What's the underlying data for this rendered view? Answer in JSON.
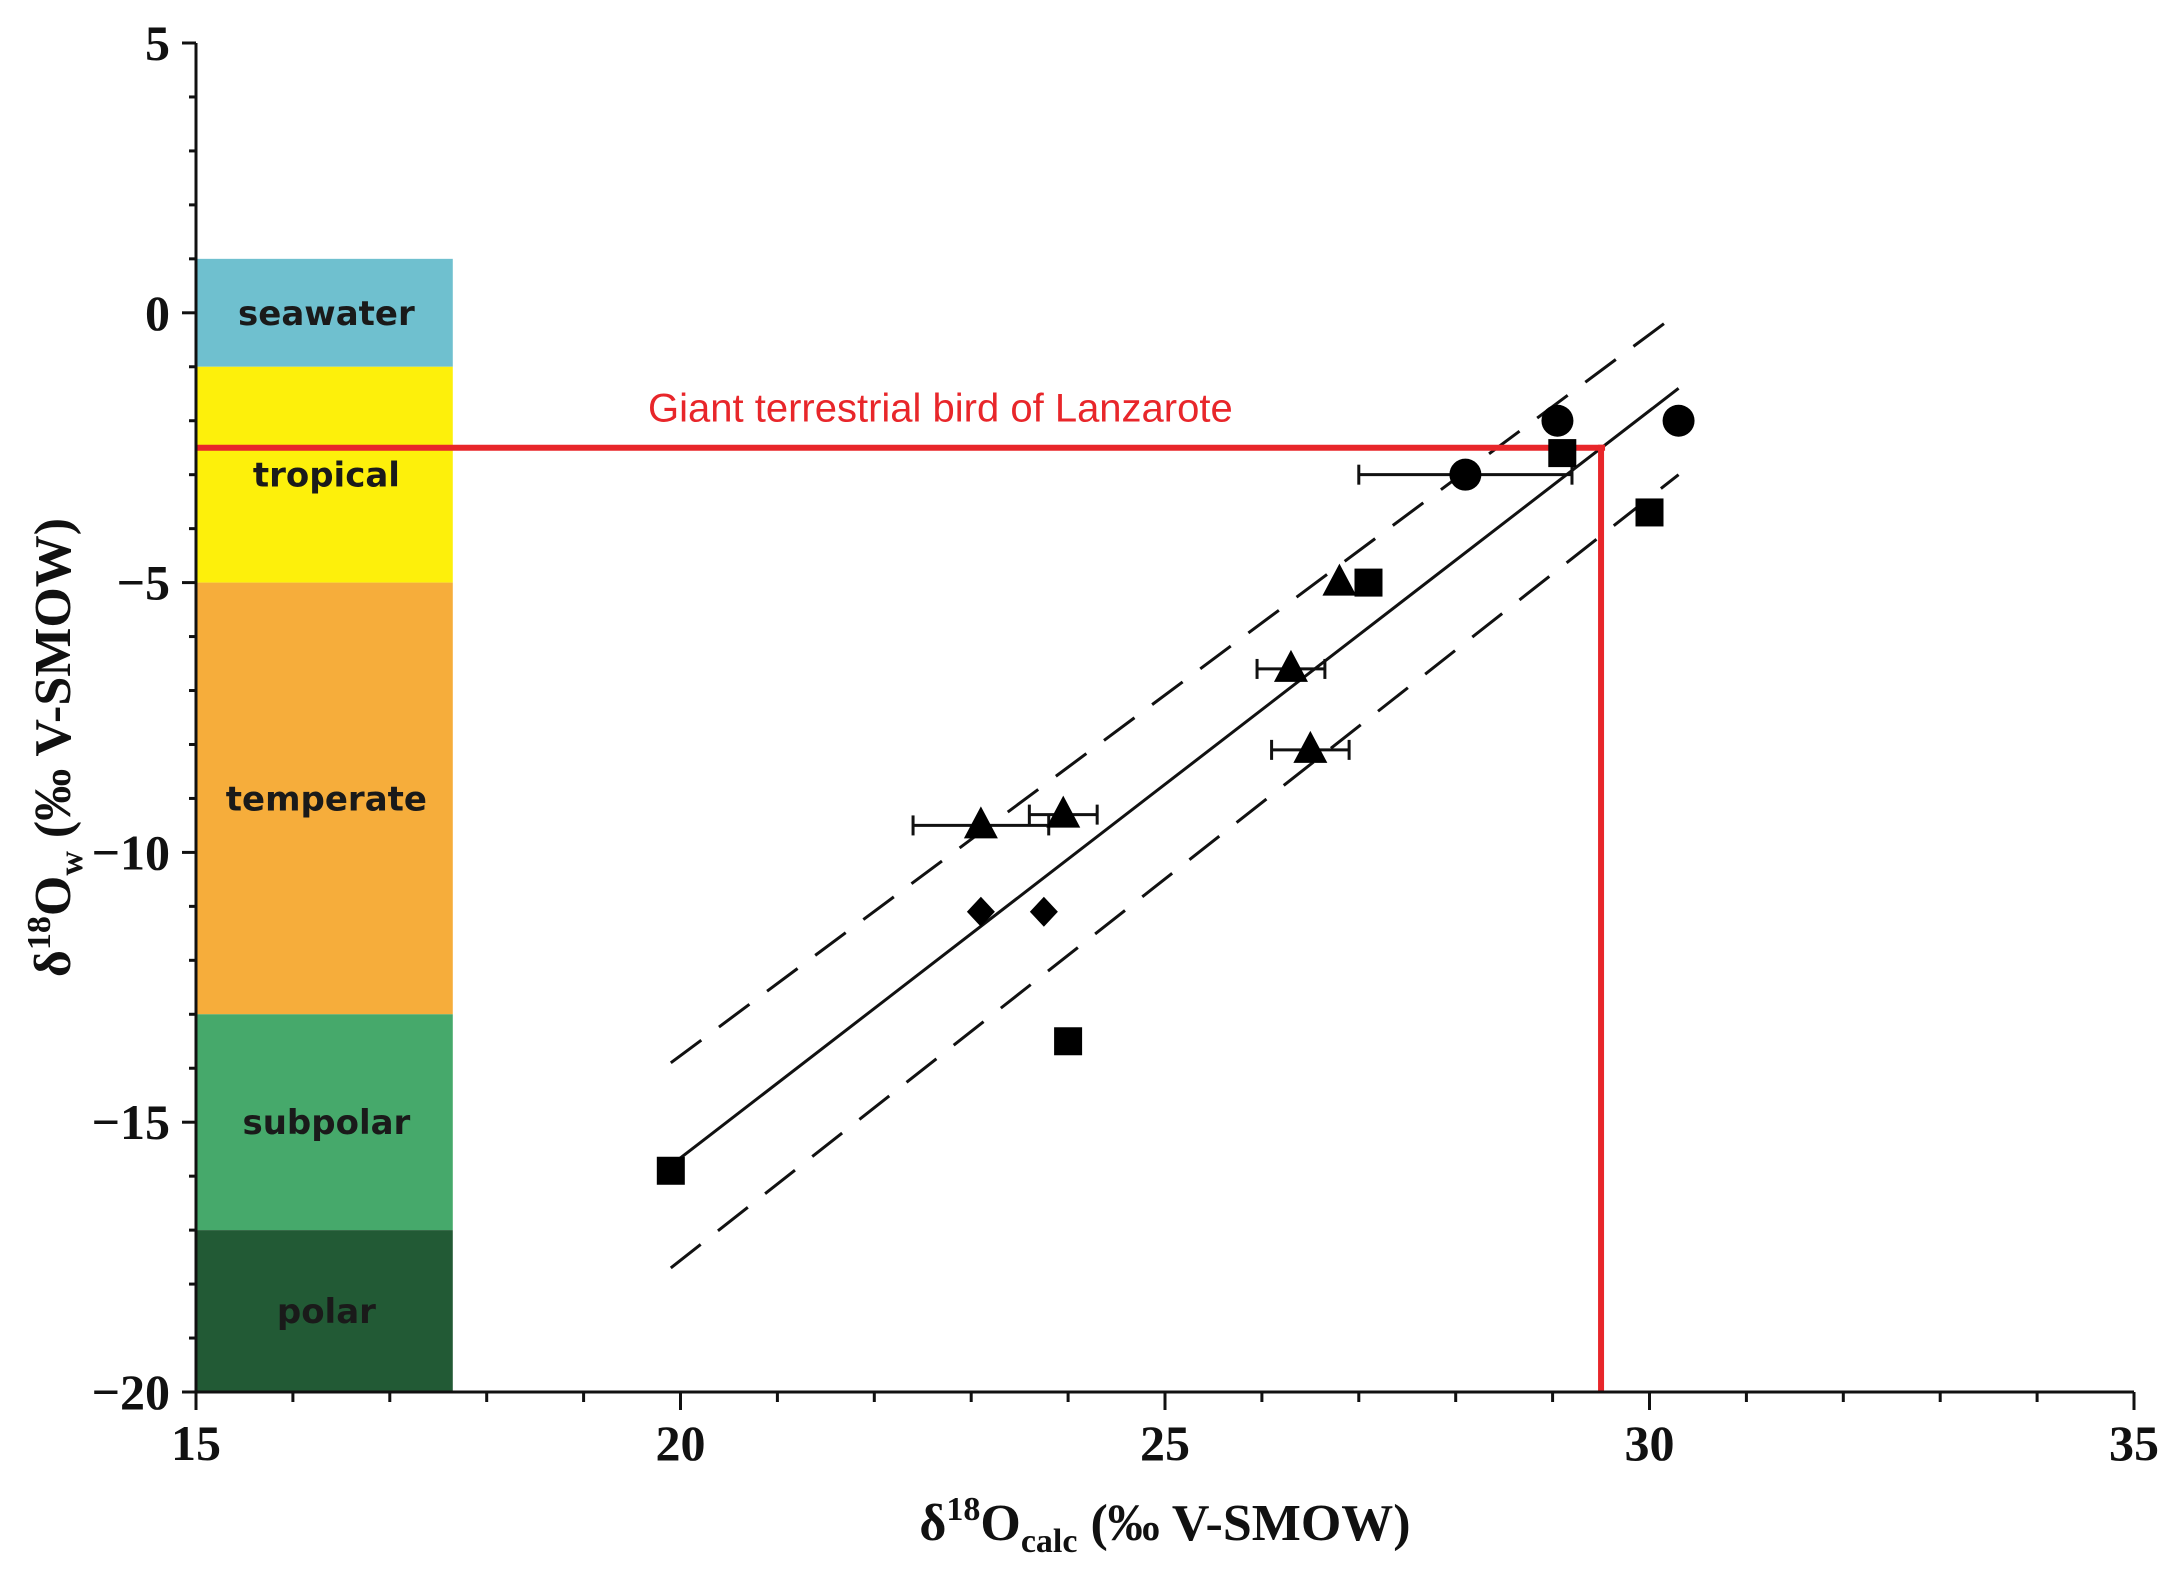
{
  "chart_data": {
    "type": "scatter",
    "x": {
      "lim": [
        15,
        35
      ],
      "ticks": [
        15,
        20,
        25,
        30,
        35
      ],
      "tick_labels": [
        "15",
        "20",
        "25",
        "30",
        "35"
      ],
      "label": {
        "prefix": "δ",
        "sup": "18",
        "main": "O",
        "sub": "calc",
        "suffix": " (‰ V-SMOW)"
      }
    },
    "y": {
      "lim": [
        -20,
        5
      ],
      "ticks": [
        5,
        0,
        -5,
        -10,
        -15,
        -20
      ],
      "tick_labels": [
        "5",
        "0",
        "−5",
        "−10",
        "−15",
        "−20"
      ],
      "label": {
        "prefix": "δ",
        "sup": "18",
        "main": "O",
        "sub": "w",
        "suffix": " (‰ V-SMOW)"
      }
    },
    "climate_bands": [
      {
        "label": "seawater",
        "y_from": -1,
        "y_to": 1,
        "color": "#6fc0cf"
      },
      {
        "label": "tropical",
        "y_from": -5,
        "y_to": -1,
        "color": "#fdf00b"
      },
      {
        "label": "temperate",
        "y_from": -13,
        "y_to": -5,
        "color": "#f6ad3b"
      },
      {
        "label": "subpolar",
        "y_from": -17,
        "y_to": -13,
        "color": "#46a96b"
      },
      {
        "label": "polar",
        "y_from": -20,
        "y_to": -17,
        "color": "#225a35"
      }
    ],
    "band_x_range": [
      15,
      17.65
    ],
    "points": {
      "squares": [
        {
          "x": 19.9,
          "y": -15.9
        },
        {
          "x": 24.0,
          "y": -13.5
        },
        {
          "x": 27.1,
          "y": -5.0
        },
        {
          "x": 29.1,
          "y": -2.6
        },
        {
          "x": 30.0,
          "y": -3.7
        }
      ],
      "circles": [
        {
          "x": 28.1,
          "y": -3.0,
          "xerr": [
            27.0,
            29.2
          ]
        },
        {
          "x": 29.05,
          "y": -2.0
        },
        {
          "x": 30.3,
          "y": -2.0
        }
      ],
      "triangles": [
        {
          "x": 23.1,
          "y": -9.5,
          "xerr": [
            22.4,
            23.8
          ]
        },
        {
          "x": 23.95,
          "y": -9.3,
          "xerr": [
            23.6,
            24.3
          ]
        },
        {
          "x": 26.3,
          "y": -6.6,
          "xerr": [
            25.95,
            26.65
          ]
        },
        {
          "x": 26.5,
          "y": -8.1,
          "xerr": [
            26.1,
            26.9
          ]
        },
        {
          "x": 26.8,
          "y": -5.0
        }
      ],
      "diamonds": [
        {
          "x": 23.1,
          "y": -11.1
        },
        {
          "x": 23.75,
          "y": -11.1
        }
      ]
    },
    "regression": {
      "x": [
        19.9,
        30.3
      ],
      "y": [
        -15.8,
        -1.4
      ],
      "style": "solid"
    },
    "confidence_upper": {
      "x": [
        19.9,
        30.3
      ],
      "y": [
        -13.9,
        0.0
      ],
      "style": "dashed"
    },
    "confidence_lower": {
      "x": [
        19.9,
        30.3
      ],
      "y": [
        -17.7,
        -3.0
      ],
      "style": "dashed"
    },
    "highlight": {
      "label": "Giant terrestrial bird of Lanzarote",
      "x": 29.5,
      "y": -2.5,
      "color": "#e8262a"
    }
  }
}
